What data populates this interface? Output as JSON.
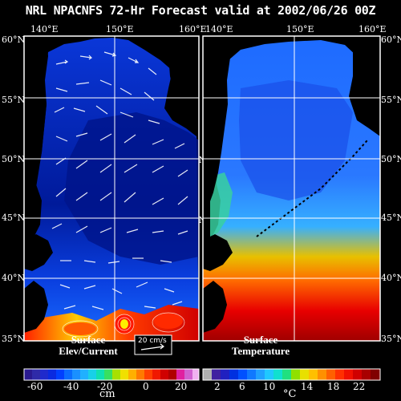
{
  "title": "NRL NPACNFS 72-Hr Forecast valid at 2002/06/26 00Z",
  "lon_ticks": [
    "140°E",
    "150°E",
    "160°E"
  ],
  "lat_ticks": [
    "60°N",
    "55°N",
    "50°N",
    "45°N",
    "40°N",
    "35°N"
  ],
  "left_panel": {
    "label_line1": "Surface",
    "label_line2": "Elev/Current",
    "scale_label": "20 cm/s",
    "colorbar_ticks": [
      "-60",
      "-40",
      "-20",
      "0",
      "20"
    ],
    "colorbar_unit": "cm"
  },
  "right_panel": {
    "label_line1": "Surface",
    "label_line2": "Temperature",
    "colorbar_ticks": [
      "2",
      "6",
      "10",
      "14",
      "18",
      "22"
    ],
    "colorbar_unit": "°C"
  },
  "colors": {
    "background": "#000000",
    "land": "#000000",
    "grid": "#ffffff"
  }
}
